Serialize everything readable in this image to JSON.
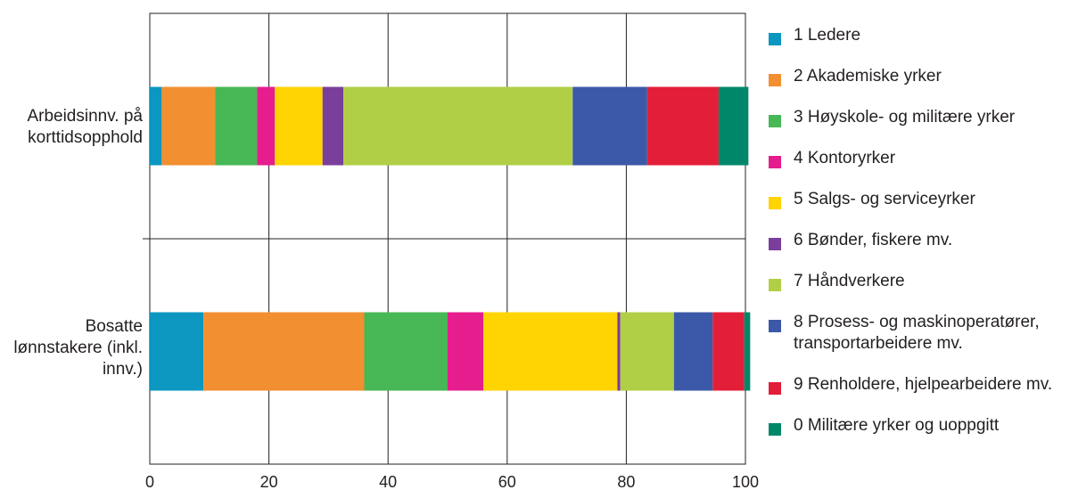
{
  "chart_data": {
    "type": "bar",
    "orientation": "horizontal",
    "stacked": true,
    "categories": [
      "Arbeidsinnv. på korttidsopphold",
      "Bosatte lønnstakere (inkl. innv.)"
    ],
    "series": [
      {
        "name": "1 Ledere",
        "color": "#0b97c0",
        "values": [
          2,
          9
        ]
      },
      {
        "name": "2 Akademiske yrker",
        "color": "#f28f30",
        "values": [
          9,
          27
        ]
      },
      {
        "name": "3 Høyskole- og militære yrker",
        "color": "#48b756",
        "values": [
          7,
          14
        ]
      },
      {
        "name": "4 Kontoryrker",
        "color": "#e51d8d",
        "values": [
          3,
          6
        ]
      },
      {
        "name": "5 Salgs- og serviceyrker",
        "color": "#ffd400",
        "values": [
          8,
          22.5
        ]
      },
      {
        "name": "6 Bønder, fiskere mv.",
        "color": "#7a3f9b",
        "values": [
          3.5,
          0.5
        ]
      },
      {
        "name": "7 Håndverkere",
        "color": "#b0cf46",
        "values": [
          38.5,
          9
        ]
      },
      {
        "name": "8 Prosess- og maskinoperatører,\ntransportarbeidere mv.",
        "color": "#3b59a8",
        "values": [
          12.5,
          6.5
        ]
      },
      {
        "name": "9 Renholdere, hjelpearbeidere mv.",
        "color": "#e31e38",
        "values": [
          12,
          5.3
        ]
      },
      {
        "name": "0 Militære yrker og uoppgitt",
        "color": "#00876a",
        "values": [
          5,
          1
        ]
      }
    ],
    "xlim": [
      0,
      100
    ],
    "xticks": [
      "0",
      "20",
      "40",
      "60",
      "80",
      "100"
    ],
    "grid": true,
    "legend_position": "right"
  },
  "labels": {
    "category_0": "Arbeidsinnv. på\nkorttidsopphold",
    "category_1": "Bosatte\nlønnstakere (inkl.\ninnv.)"
  }
}
